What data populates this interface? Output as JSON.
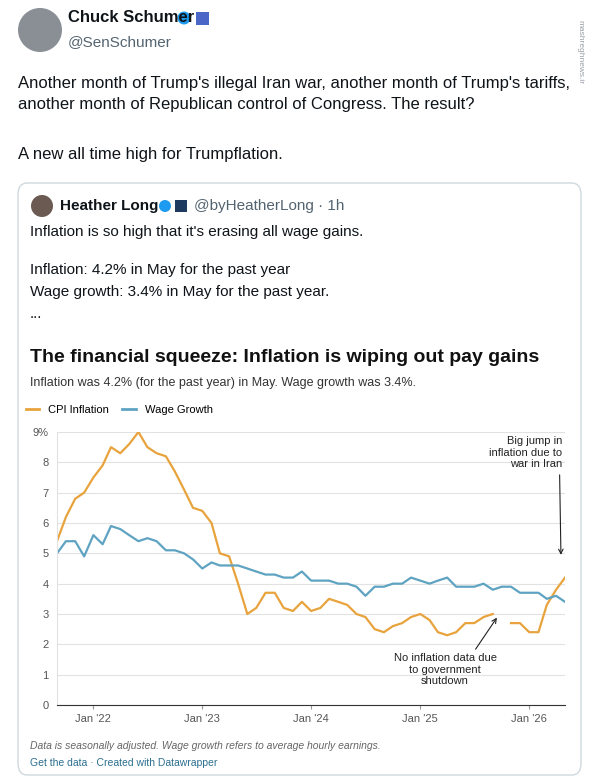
{
  "tweet": {
    "author": "Chuck Schumer",
    "handle": "@SenSchumer",
    "text": [
      "Another month of Trump's illegal Iran war, another month of Trump's tariffs, another month of Republican control of Congress. The result?",
      "A new all time high for Trumpflation."
    ],
    "watermark": "mashreghnews.ir"
  },
  "quoted_tweet": {
    "author": "Heather Long",
    "handle_time": "@byHeatherLong · 1h",
    "text": [
      "Inflation is so high that it's erasing all wage gains.",
      "Inflation: 4.2% in May for the past year",
      "Wage growth: 3.4% in May for the past year.",
      "..."
    ]
  },
  "chart_data": {
    "type": "line",
    "title": "The financial squeeze: Inflation is wiping out pay gains",
    "subtitle": "Inflation was 4.2% (for the past year) in May. Wage growth was 3.4%.",
    "x": [
      "2021-09",
      "2021-10",
      "2021-11",
      "2021-12",
      "2022-01",
      "2022-02",
      "2022-03",
      "2022-04",
      "2022-05",
      "2022-06",
      "2022-07",
      "2022-08",
      "2022-09",
      "2022-10",
      "2022-11",
      "2022-12",
      "2023-01",
      "2023-02",
      "2023-03",
      "2023-04",
      "2023-05",
      "2023-06",
      "2023-07",
      "2023-08",
      "2023-09",
      "2023-10",
      "2023-11",
      "2023-12",
      "2024-01",
      "2024-02",
      "2024-03",
      "2024-04",
      "2024-05",
      "2024-06",
      "2024-07",
      "2024-08",
      "2024-09",
      "2024-10",
      "2024-11",
      "2024-12",
      "2025-01",
      "2025-02",
      "2025-03",
      "2025-04",
      "2025-05",
      "2025-06",
      "2025-07",
      "2025-08",
      "2025-09",
      "2025-10",
      "2025-11",
      "2025-12",
      "2026-01",
      "2026-02",
      "2026-03",
      "2026-04",
      "2026-05"
    ],
    "series": [
      {
        "name": "CPI Inflation",
        "color": "#e8a33d",
        "values": [
          5.4,
          6.2,
          6.8,
          7.0,
          7.5,
          7.9,
          8.5,
          8.3,
          8.6,
          9.0,
          8.5,
          8.3,
          8.2,
          7.7,
          7.1,
          6.5,
          6.4,
          6.0,
          5.0,
          4.9,
          4.0,
          3.0,
          3.2,
          3.7,
          3.7,
          3.2,
          3.1,
          3.4,
          3.1,
          3.2,
          3.5,
          3.4,
          3.3,
          3.0,
          2.9,
          2.5,
          2.4,
          2.6,
          2.7,
          2.9,
          3.0,
          2.8,
          2.4,
          2.3,
          2.4,
          2.7,
          2.7,
          2.9,
          3.0,
          null,
          2.7,
          2.7,
          2.4,
          2.4,
          3.3,
          3.8,
          4.2
        ]
      },
      {
        "name": "Wage Growth",
        "color": "#5fa3c2",
        "values": [
          5.0,
          5.4,
          5.4,
          4.9,
          5.6,
          5.3,
          5.9,
          5.8,
          5.6,
          5.4,
          5.5,
          5.4,
          5.1,
          5.1,
          5.0,
          4.8,
          4.5,
          4.7,
          4.6,
          4.6,
          4.6,
          4.5,
          4.4,
          4.3,
          4.3,
          4.2,
          4.2,
          4.4,
          4.1,
          4.1,
          4.1,
          4.0,
          4.0,
          3.9,
          3.6,
          3.9,
          3.9,
          4.0,
          4.0,
          4.2,
          4.1,
          4.0,
          4.1,
          4.2,
          3.9,
          3.9,
          3.9,
          4.0,
          3.8,
          3.9,
          3.9,
          3.7,
          3.7,
          3.7,
          3.5,
          3.6,
          3.4
        ]
      }
    ],
    "xlim": [
      "2021-09",
      "2026-05"
    ],
    "xticks": [
      {
        "value": "2022-01",
        "label": "Jan '22"
      },
      {
        "value": "2023-01",
        "label": "Jan '23"
      },
      {
        "value": "2024-01",
        "label": "Jan '24"
      },
      {
        "value": "2025-01",
        "label": "Jan '25"
      },
      {
        "value": "2026-01",
        "label": "Jan '26"
      }
    ],
    "ylim": [
      0,
      9
    ],
    "yticks": [
      0,
      1,
      2,
      3,
      4,
      5,
      6,
      7,
      8,
      {
        "value": 9,
        "label": "9%"
      }
    ],
    "grid": true,
    "legend": "upper left",
    "annotations": [
      "Big jump in\ninflation due to\nwar in Iran",
      "No inflation data due\nto government\nshutdown"
    ],
    "note": "Data is seasonally adjusted. Wage growth refers to average hourly earnings.",
    "source": "Get the data · Created with Datawrapper"
  }
}
